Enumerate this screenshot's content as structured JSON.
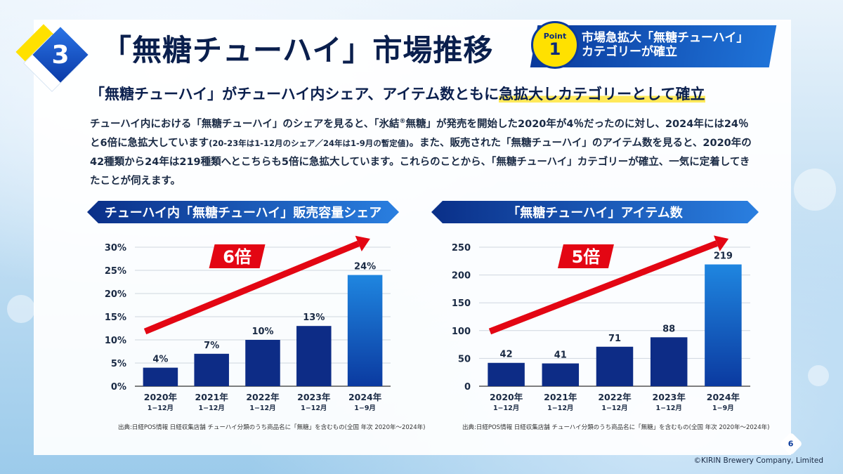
{
  "section_number": "3",
  "page_title": "「無糖チューハイ」市場推移",
  "point": {
    "label": "Point",
    "number": "1",
    "line1": "市場急拡大「無糖チューハイ」",
    "line2": "カテゴリーが確立"
  },
  "headline": {
    "part1": "「無糖チューハイ」がチューハイ内シェア、アイテム数ともに",
    "part2": "急拡大しカテゴリーとして確立"
  },
  "body": {
    "t1": "チューハイ内における「無糖チューハイ」のシェアを見ると、「氷結",
    "reg": "®",
    "t2": "無糖」が発売を開始した2020年が4％だったのに対し、2024年には24％と6倍に急拡大しています",
    "small": "(20-23年は1-12月のシェア／24年は1-9月の暫定値)",
    "t3": "。また、販売された「無糖チューハイ」のアイテム数を見ると、2020年の42種類から24年は219種類へとこちらも5倍に急拡大しています。これらのことから、「無糖チューハイ」カテゴリーが確立、一気に定着してきたことが伺えます。"
  },
  "colors": {
    "navy": "#0a2a7a",
    "accent_blue": "#1f73d8",
    "red": "#e30613",
    "yellow": "#ffe100"
  },
  "chart_data": [
    {
      "type": "bar",
      "title": "チューハイ内「無糖チューハイ」販売容量シェア",
      "categories": [
        "2020年",
        "2021年",
        "2022年",
        "2023年",
        "2024年"
      ],
      "sublabels": [
        "1−12月",
        "1−12月",
        "1−12月",
        "1−12月",
        "1−9月"
      ],
      "values": [
        4,
        7,
        10,
        13,
        24
      ],
      "data_labels": [
        "4%",
        "7%",
        "10%",
        "13%",
        "24%"
      ],
      "yticks": [
        "0%",
        "5%",
        "10%",
        "15%",
        "20%",
        "25%",
        "30%"
      ],
      "ylim": [
        0,
        30
      ],
      "annotation": "6倍",
      "source": "出典:日経POS情報 日経収集店舗 チューハイ分類のうち商品名に「無糖」を含むもの(全国 年次 2020年〜2024年)"
    },
    {
      "type": "bar",
      "title": "「無糖チューハイ」アイテム数",
      "categories": [
        "2020年",
        "2021年",
        "2022年",
        "2023年",
        "2024年"
      ],
      "sublabels": [
        "1−12月",
        "1−12月",
        "1−12月",
        "1−12月",
        "1−9月"
      ],
      "values": [
        42,
        41,
        71,
        88,
        219
      ],
      "data_labels": [
        "42",
        "41",
        "71",
        "88",
        "219"
      ],
      "yticks": [
        "0",
        "50",
        "100",
        "150",
        "200",
        "250"
      ],
      "ylim": [
        0,
        250
      ],
      "annotation": "5倍",
      "source": "出典:日経POS情報 日経収集店舗 チューハイ分類のうち商品名に「無糖」を含むもの(全国 年次 2020年〜2024年)"
    }
  ],
  "page_number": "6",
  "copyright": "©KIRIN Brewery Company, Limited"
}
